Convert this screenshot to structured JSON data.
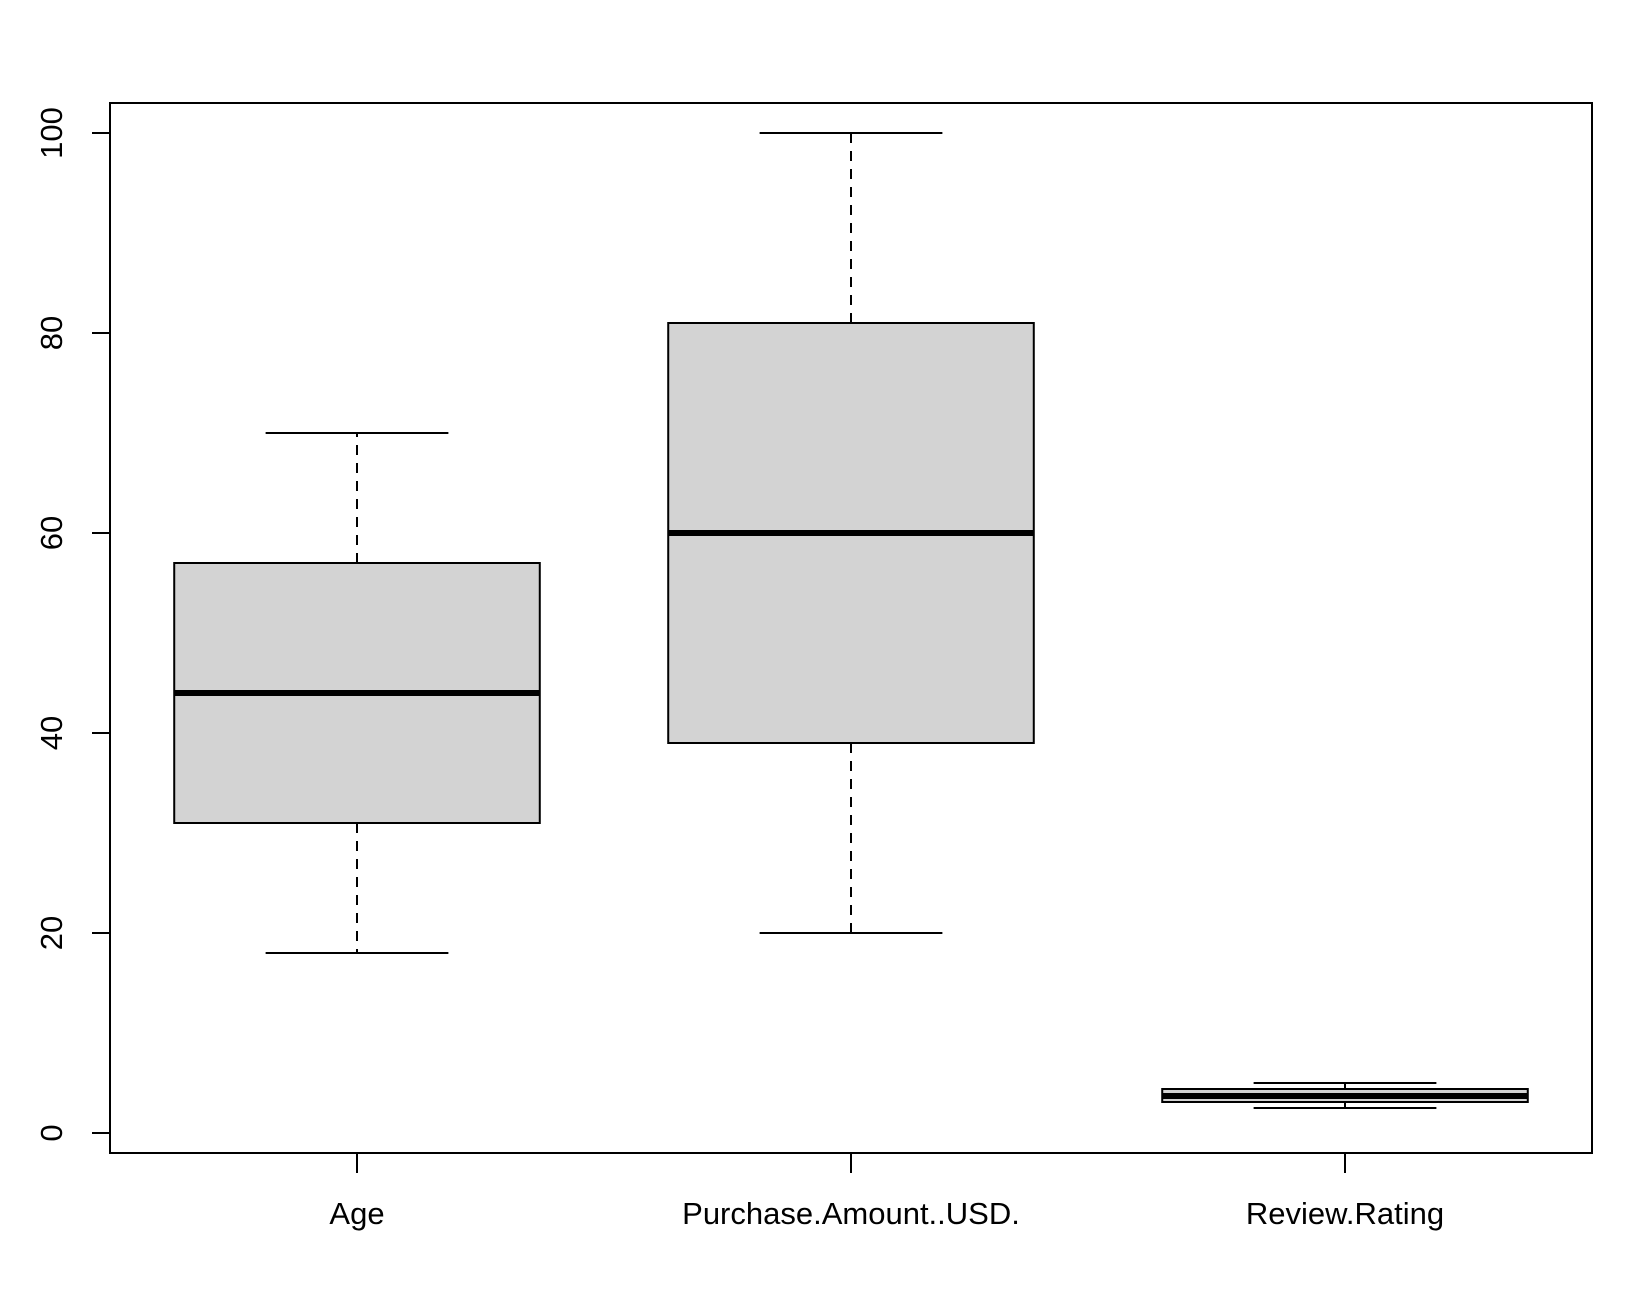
{
  "chart_data": {
    "type": "boxplot",
    "title": "",
    "xlabel": "",
    "ylabel": "",
    "ylim": [
      -2,
      103
    ],
    "y_ticks": [
      0,
      20,
      40,
      60,
      80,
      100
    ],
    "grid": false,
    "categories": [
      "Age",
      "Purchase.Amount..USD.",
      "Review.Rating"
    ],
    "boxes": [
      {
        "category": "Age",
        "min": 18,
        "q1": 31,
        "median": 44,
        "q3": 57,
        "max": 70
      },
      {
        "category": "Purchase.Amount..USD.",
        "min": 20,
        "q1": 39,
        "median": 60,
        "q3": 81,
        "max": 100
      },
      {
        "category": "Review.Rating",
        "min": 2.5,
        "q1": 3.1,
        "median": 3.7,
        "q3": 4.4,
        "max": 5.0
      }
    ],
    "colors": {
      "box_fill": "#d3d3d3",
      "stroke": "#000000",
      "background": "#ffffff"
    }
  }
}
